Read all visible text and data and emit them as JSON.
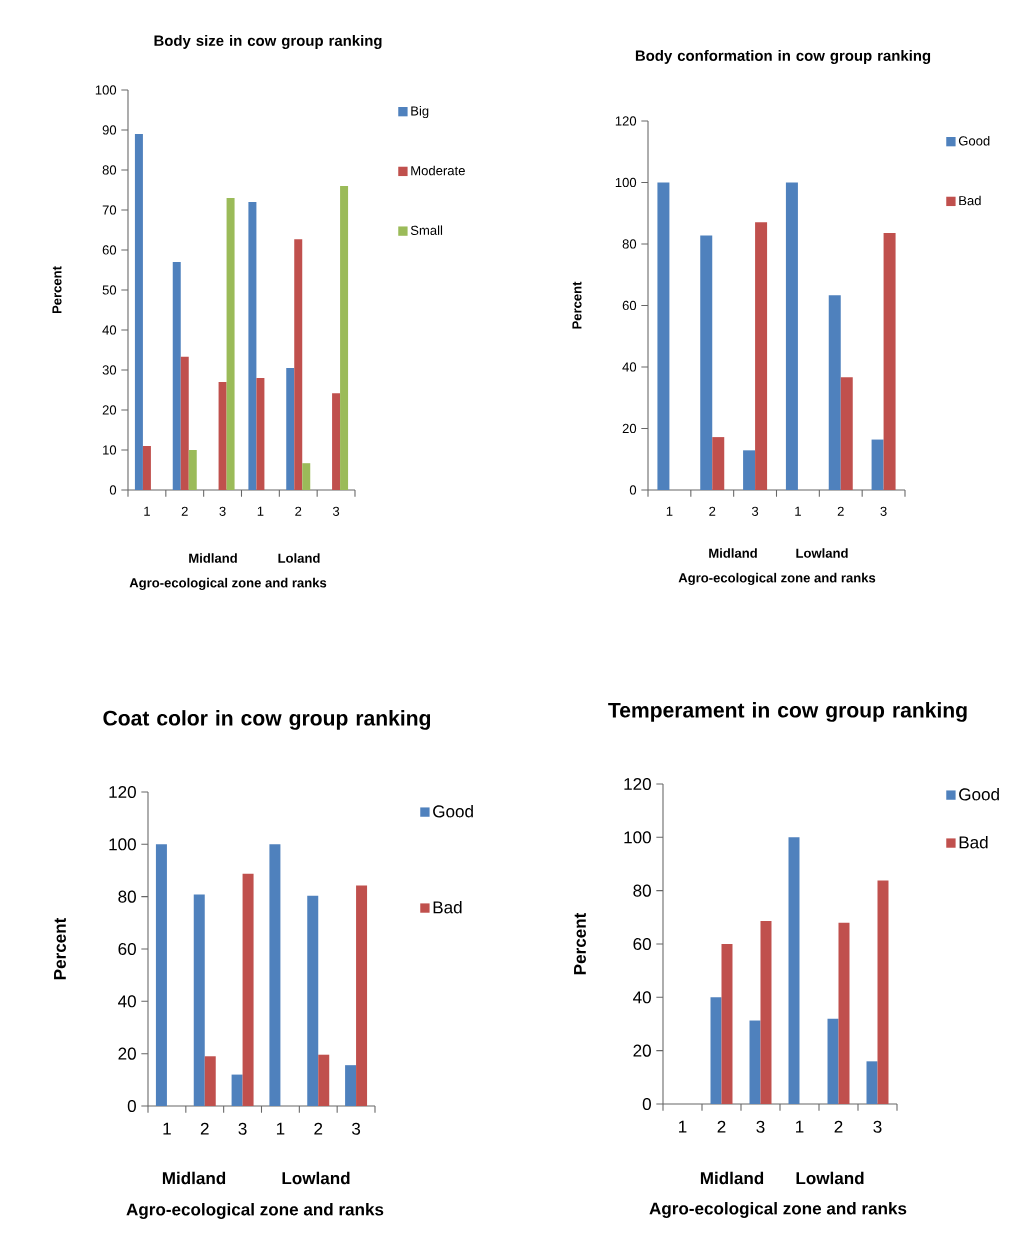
{
  "chart_data": [
    {
      "type": "bar",
      "title": "Body size in cow group ranking",
      "xlabel": "Agro-ecological zone and ranks",
      "ylabel": "Percent",
      "categories": [
        "1",
        "2",
        "3",
        "1",
        "2",
        "3"
      ],
      "annotations": [
        "Midland",
        "Loland"
      ],
      "ylim": [
        0,
        100
      ],
      "yticks": [
        0,
        10,
        20,
        30,
        40,
        50,
        60,
        70,
        80,
        90,
        100
      ],
      "legend": "right",
      "series": [
        {
          "name": "Big",
          "color": "#4f81bd",
          "values": [
            89,
            57,
            null,
            72,
            30.5,
            null
          ]
        },
        {
          "name": "Moderate",
          "color": "#c0504d",
          "values": [
            11,
            33.3,
            27,
            28,
            62.7,
            24.2
          ]
        },
        {
          "name": "Small",
          "color": "#9bbb59",
          "values": [
            null,
            10,
            73,
            null,
            6.7,
            76
          ]
        }
      ]
    },
    {
      "type": "bar",
      "title": "Body conformation in cow group ranking",
      "xlabel": "Agro-ecological zone and ranks",
      "ylabel": "Percent",
      "categories": [
        "1",
        "2",
        "3",
        "1",
        "2",
        "3"
      ],
      "annotations": [
        "Midland",
        "Lowland"
      ],
      "ylim": [
        0,
        120
      ],
      "yticks": [
        0,
        20,
        40,
        60,
        80,
        100,
        120
      ],
      "legend": "right",
      "series": [
        {
          "name": "Good",
          "color": "#4f81bd",
          "values": [
            100,
            82.8,
            12.9,
            100,
            63.3,
            16.4
          ]
        },
        {
          "name": "Bad",
          "color": "#c0504d",
          "values": [
            null,
            17.2,
            87.1,
            null,
            36.7,
            83.6
          ]
        }
      ]
    },
    {
      "type": "bar",
      "title": "Coat color in cow group ranking",
      "xlabel": "Agro-ecological zone and ranks",
      "ylabel": "Percent",
      "categories": [
        "1",
        "2",
        "3",
        "1",
        "2",
        "3"
      ],
      "annotations": [
        "Midland",
        "Lowland"
      ],
      "ylim": [
        0,
        120
      ],
      "yticks": [
        0,
        20,
        40,
        60,
        80,
        100,
        120
      ],
      "legend": "right",
      "series": [
        {
          "name": "Good",
          "color": "#4f81bd",
          "values": [
            100,
            80.8,
            12,
            100,
            80.3,
            15.6
          ]
        },
        {
          "name": "Bad",
          "color": "#c0504d",
          "values": [
            null,
            19,
            88.8,
            null,
            19.6,
            84.3
          ]
        }
      ]
    },
    {
      "type": "bar",
      "title": "Temperament  in cow group ranking",
      "xlabel": "Agro-ecological zone and ranks",
      "ylabel": "Percent",
      "categories": [
        "1",
        "2",
        "3",
        "1",
        "2",
        "3"
      ],
      "annotations": [
        "Midland",
        "Lowland"
      ],
      "ylim": [
        0,
        120
      ],
      "yticks": [
        0,
        20,
        40,
        60,
        80,
        100,
        120
      ],
      "legend": "right",
      "series": [
        {
          "name": "Good",
          "color": "#4f81bd",
          "values": [
            null,
            40,
            31.3,
            100,
            32,
            16
          ]
        },
        {
          "name": "Bad",
          "color": "#c0504d",
          "values": [
            null,
            60,
            68.6,
            null,
            68,
            83.8
          ]
        }
      ]
    }
  ]
}
